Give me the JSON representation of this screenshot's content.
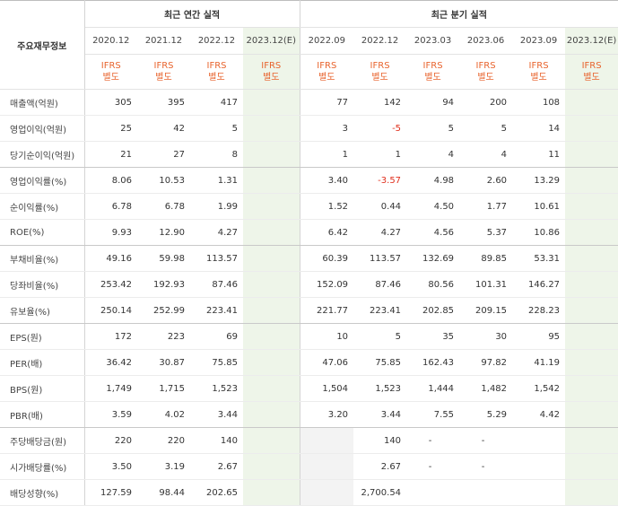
{
  "header": {
    "corner_label": "주요재무정보",
    "annual_title": "최근 연간 실적",
    "quarterly_title": "최근 분기 실적",
    "periods": [
      "2020.12",
      "2021.12",
      "2022.12",
      "2023.12(E)",
      "2022.09",
      "2022.12",
      "2023.03",
      "2023.06",
      "2023.09",
      "2023.12(E)"
    ],
    "ifrs_line1": "IFRS",
    "ifrs_line2": "별도"
  },
  "rows": [
    {
      "label": "매출액(억원)",
      "values": [
        "305",
        "395",
        "417",
        "",
        "77",
        "142",
        "94",
        "200",
        "108",
        ""
      ]
    },
    {
      "label": "영업이익(억원)",
      "values": [
        "25",
        "42",
        "5",
        "",
        "3",
        "-5",
        "5",
        "5",
        "14",
        ""
      ]
    },
    {
      "label": "당기순이익(억원)",
      "values": [
        "21",
        "27",
        "8",
        "",
        "1",
        "1",
        "4",
        "4",
        "11",
        ""
      ]
    },
    {
      "label": "영업이익률(%)",
      "values": [
        "8.06",
        "10.53",
        "1.31",
        "",
        "3.40",
        "-3.57",
        "4.98",
        "2.60",
        "13.29",
        ""
      ]
    },
    {
      "label": "순이익률(%)",
      "values": [
        "6.78",
        "6.78",
        "1.99",
        "",
        "1.52",
        "0.44",
        "4.50",
        "1.77",
        "10.61",
        ""
      ]
    },
    {
      "label": "ROE(%)",
      "values": [
        "9.93",
        "12.90",
        "4.27",
        "",
        "6.42",
        "4.27",
        "4.56",
        "5.37",
        "10.86",
        ""
      ]
    },
    {
      "label": "부채비율(%)",
      "values": [
        "49.16",
        "59.98",
        "113.57",
        "",
        "60.39",
        "113.57",
        "132.69",
        "89.85",
        "53.31",
        ""
      ]
    },
    {
      "label": "당좌비율(%)",
      "values": [
        "253.42",
        "192.93",
        "87.46",
        "",
        "152.09",
        "87.46",
        "80.56",
        "101.31",
        "146.27",
        ""
      ]
    },
    {
      "label": "유보율(%)",
      "values": [
        "250.14",
        "252.99",
        "223.41",
        "",
        "221.77",
        "223.41",
        "202.85",
        "209.15",
        "228.23",
        ""
      ]
    },
    {
      "label": "EPS(원)",
      "values": [
        "172",
        "223",
        "69",
        "",
        "10",
        "5",
        "35",
        "30",
        "95",
        ""
      ]
    },
    {
      "label": "PER(배)",
      "values": [
        "36.42",
        "30.87",
        "75.85",
        "",
        "47.06",
        "75.85",
        "162.43",
        "97.82",
        "41.19",
        ""
      ]
    },
    {
      "label": "BPS(원)",
      "values": [
        "1,749",
        "1,715",
        "1,523",
        "",
        "1,504",
        "1,523",
        "1,444",
        "1,482",
        "1,542",
        ""
      ]
    },
    {
      "label": "PBR(배)",
      "values": [
        "3.59",
        "4.02",
        "3.44",
        "",
        "3.20",
        "3.44",
        "7.55",
        "5.29",
        "4.42",
        ""
      ]
    },
    {
      "label": "주당배당금(원)",
      "values": [
        "220",
        "220",
        "140",
        "",
        "",
        "140",
        "-",
        "-",
        "",
        ""
      ]
    },
    {
      "label": "시가배당률(%)",
      "values": [
        "3.50",
        "3.19",
        "2.67",
        "",
        "",
        "2.67",
        "-",
        "-",
        "",
        ""
      ]
    },
    {
      "label": "배당성향(%)",
      "values": [
        "127.59",
        "98.44",
        "202.65",
        "",
        "",
        "2,700.54",
        "",
        "",
        "",
        ""
      ]
    }
  ],
  "colors": {
    "ifrs_text": "#e8642e",
    "negative": "#e0301e",
    "estimate_bg": "#eef5e9"
  }
}
